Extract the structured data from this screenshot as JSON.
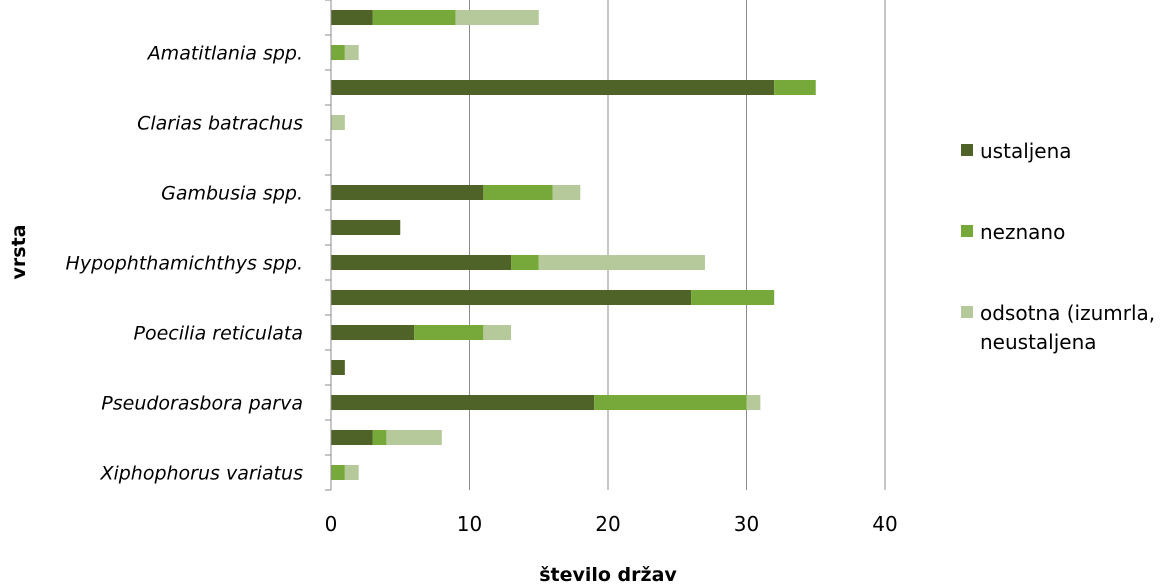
{
  "chart_data": {
    "type": "bar",
    "orientation": "horizontal",
    "stacked": true,
    "xlabel": "število držav",
    "ylabel": "vrsta",
    "xlim": [
      0,
      40
    ],
    "x_ticks": [
      "0",
      "10",
      "20",
      "30",
      "40"
    ],
    "grid": "vertical",
    "legend_position": "right",
    "categories": [
      "",
      "Amatitlania spp.",
      "",
      "Clarias batrachus",
      "",
      "Gambusia spp.",
      "",
      "Hypophthamichthys spp.",
      "",
      "Poecilia reticulata",
      "",
      "Pseudorasbora parva",
      "",
      "Xiphophorus variatus"
    ],
    "series": [
      {
        "name": "ustaljena",
        "color": "#4f6228",
        "values": [
          3,
          0,
          32,
          0,
          0,
          11,
          5,
          13,
          26,
          6,
          1,
          19,
          3,
          0
        ]
      },
      {
        "name": "neznano",
        "color": "#77a93a",
        "values": [
          6,
          1,
          3,
          0,
          0,
          5,
          0,
          2,
          6,
          5,
          0,
          11,
          1,
          1
        ]
      },
      {
        "name": "odsotna (izumrla, neustaljena",
        "legend_lines": [
          "odsotna (izumrla,",
          "neustaljena"
        ],
        "color": "#b5c99a",
        "values": [
          6,
          1,
          0,
          1,
          0,
          2,
          0,
          12,
          0,
          2,
          0,
          1,
          4,
          1
        ]
      }
    ]
  }
}
